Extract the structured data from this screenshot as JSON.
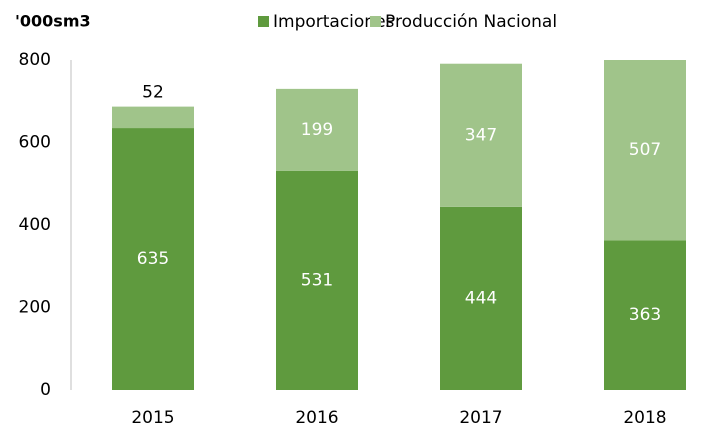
{
  "chart_data": {
    "type": "stacked_bar",
    "y_label": "'000sm3",
    "categories": [
      "2015",
      "2016",
      "2017",
      "2018"
    ],
    "series": [
      {
        "name": "Importaciones",
        "color": "#5f9a3e",
        "values": [
          635,
          531,
          444,
          363
        ]
      },
      {
        "name": "Producción Nacional",
        "color": "#a0c48a",
        "values": [
          52,
          199,
          347,
          507
        ]
      }
    ],
    "ylim": [
      0,
      800
    ],
    "yticks": [
      0,
      200,
      400,
      600,
      800
    ],
    "grid": false
  }
}
